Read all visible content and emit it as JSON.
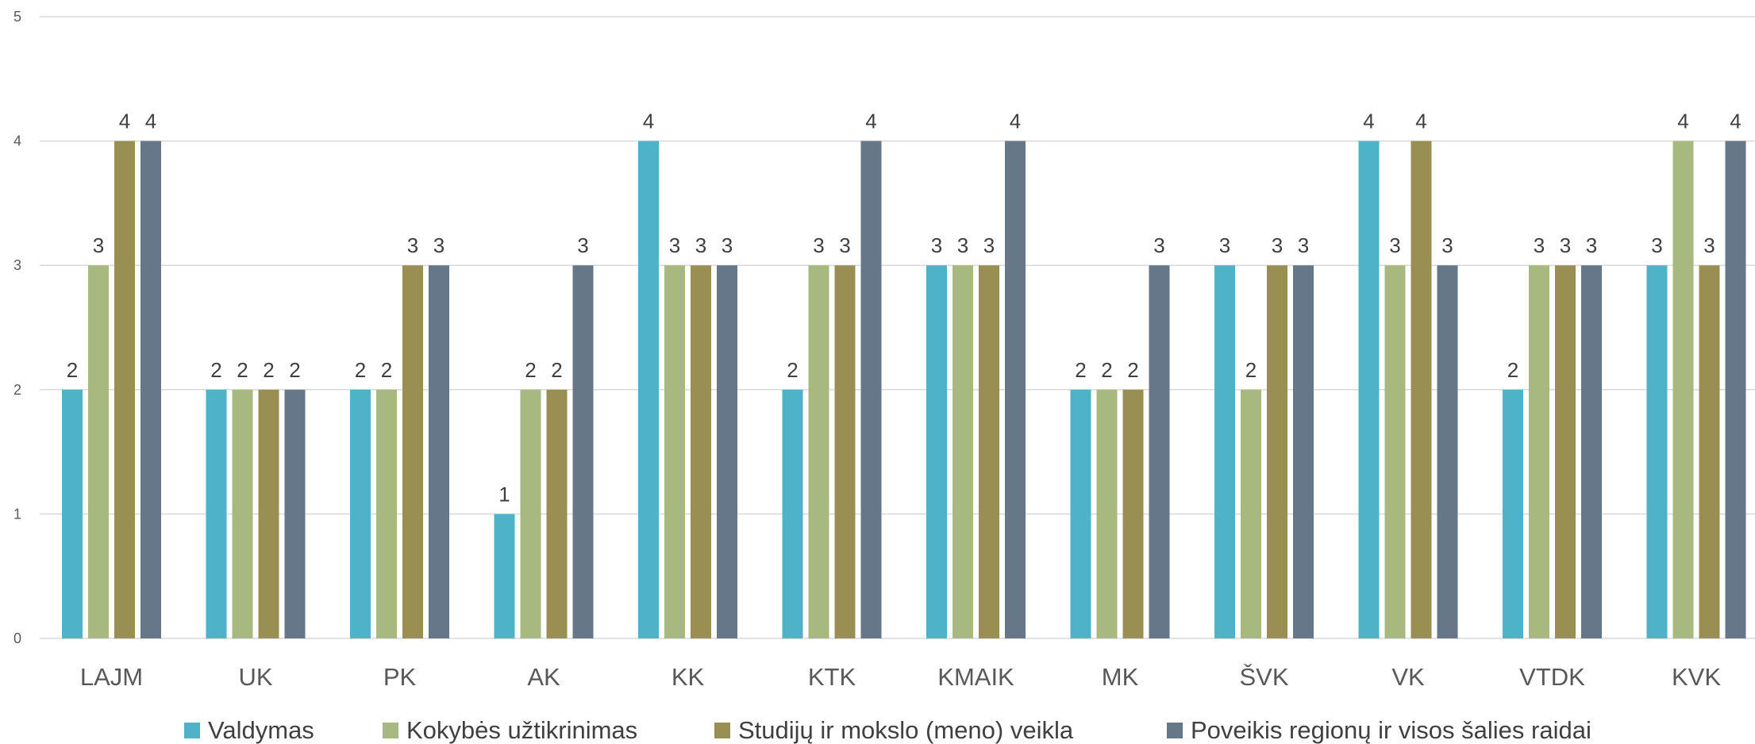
{
  "chart_data": {
    "type": "bar",
    "title": "",
    "xlabel": "",
    "ylabel": "",
    "ylim": [
      0,
      5
    ],
    "yticks": [
      0,
      1,
      2,
      3,
      4,
      5
    ],
    "grid": true,
    "legend_position": "bottom",
    "categories": [
      "LAJM",
      "UK",
      "PK",
      "AK",
      "KK",
      "KTK",
      "KMAIK",
      "MK",
      "ŠVK",
      "VK",
      "VTDK",
      "KVK"
    ],
    "series": [
      {
        "name": "Valdymas",
        "color": "#4eb3c9",
        "values": [
          2,
          2,
          2,
          1,
          4,
          2,
          3,
          2,
          3,
          4,
          2,
          3
        ]
      },
      {
        "name": "Kokybės užtikrinimas",
        "color": "#a8b97f",
        "values": [
          3,
          2,
          2,
          2,
          3,
          3,
          3,
          2,
          2,
          3,
          3,
          4
        ]
      },
      {
        "name": "Studijų ir mokslo (meno) veikla",
        "color": "#9a8f52",
        "values": [
          4,
          2,
          3,
          2,
          3,
          3,
          3,
          2,
          3,
          4,
          3,
          3
        ]
      },
      {
        "name": "Poveikis regionų ir visos šalies raidai",
        "color": "#667789",
        "values": [
          4,
          2,
          3,
          3,
          3,
          4,
          4,
          3,
          3,
          3,
          3,
          4
        ]
      }
    ]
  }
}
